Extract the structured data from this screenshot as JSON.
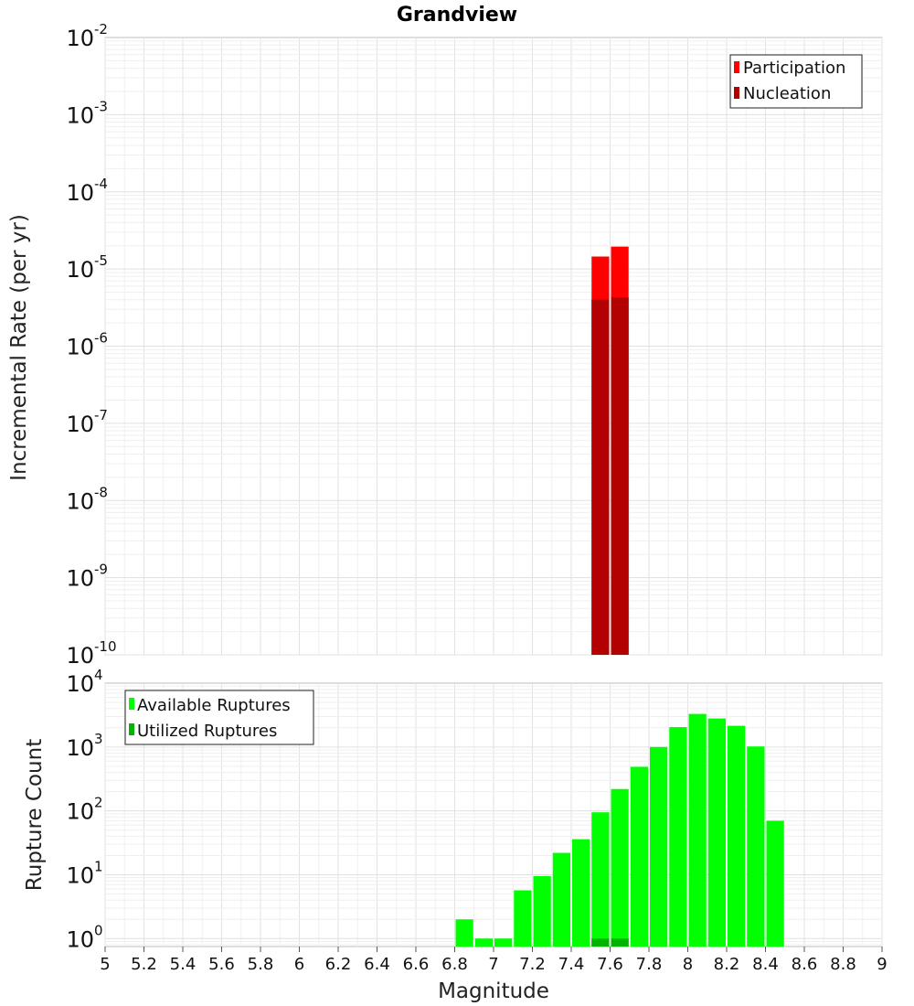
{
  "chart_data": [
    {
      "type": "bar",
      "title": "Grandview",
      "ylabel": "Incremental Rate (per yr)",
      "xlabel": "",
      "yscale": "log",
      "xlim": [
        5,
        9
      ],
      "ylim": [
        1e-10,
        0.01
      ],
      "ytick_exponents": [
        -10,
        -9,
        -8,
        -7,
        -6,
        -5,
        -4,
        -3,
        -2
      ],
      "grid": true,
      "legend_position": "top-right",
      "series": [
        {
          "name": "Participation",
          "color": "#ff0000",
          "bars": [
            {
              "x": 7.55,
              "y": 1.45e-05
            },
            {
              "x": 7.65,
              "y": 1.95e-05
            }
          ]
        },
        {
          "name": "Nucleation",
          "color": "#b30000",
          "bars": [
            {
              "x": 7.55,
              "y": 4e-06
            },
            {
              "x": 7.65,
              "y": 4.3e-06
            }
          ]
        }
      ]
    },
    {
      "type": "bar",
      "title": "",
      "ylabel": "Rupture Count",
      "xlabel": "Magnitude",
      "yscale": "log",
      "xlim": [
        5,
        9
      ],
      "ylim": [
        0.75,
        10000
      ],
      "ytick_exponents": [
        0,
        1,
        2,
        3,
        4
      ],
      "xticks": [
        "5",
        "5.2",
        "5.4",
        "5.6",
        "5.8",
        "6",
        "6.2",
        "6.4",
        "6.6",
        "6.8",
        "7",
        "7.2",
        "7.4",
        "7.6",
        "7.8",
        "8",
        "8.2",
        "8.4",
        "8.6",
        "8.8",
        "9"
      ],
      "grid": true,
      "legend_position": "top-left",
      "series": [
        {
          "name": "Available Ruptures",
          "color": "#00ff00",
          "bars": [
            {
              "x": 6.85,
              "y": 2
            },
            {
              "x": 6.95,
              "y": 1
            },
            {
              "x": 7.05,
              "y": 1
            },
            {
              "x": 7.15,
              "y": 5.7
            },
            {
              "x": 7.25,
              "y": 9.5
            },
            {
              "x": 7.35,
              "y": 22
            },
            {
              "x": 7.45,
              "y": 36
            },
            {
              "x": 7.55,
              "y": 95
            },
            {
              "x": 7.65,
              "y": 220
            },
            {
              "x": 7.75,
              "y": 490
            },
            {
              "x": 7.85,
              "y": 1000
            },
            {
              "x": 7.95,
              "y": 2050
            },
            {
              "x": 8.05,
              "y": 3300
            },
            {
              "x": 8.15,
              "y": 2800
            },
            {
              "x": 8.25,
              "y": 2150
            },
            {
              "x": 8.35,
              "y": 1020
            },
            {
              "x": 8.45,
              "y": 70
            }
          ]
        },
        {
          "name": "Utilized Ruptures",
          "color": "#00b400",
          "bars": [
            {
              "x": 7.55,
              "y": 1
            },
            {
              "x": 7.65,
              "y": 1
            }
          ]
        }
      ]
    }
  ]
}
